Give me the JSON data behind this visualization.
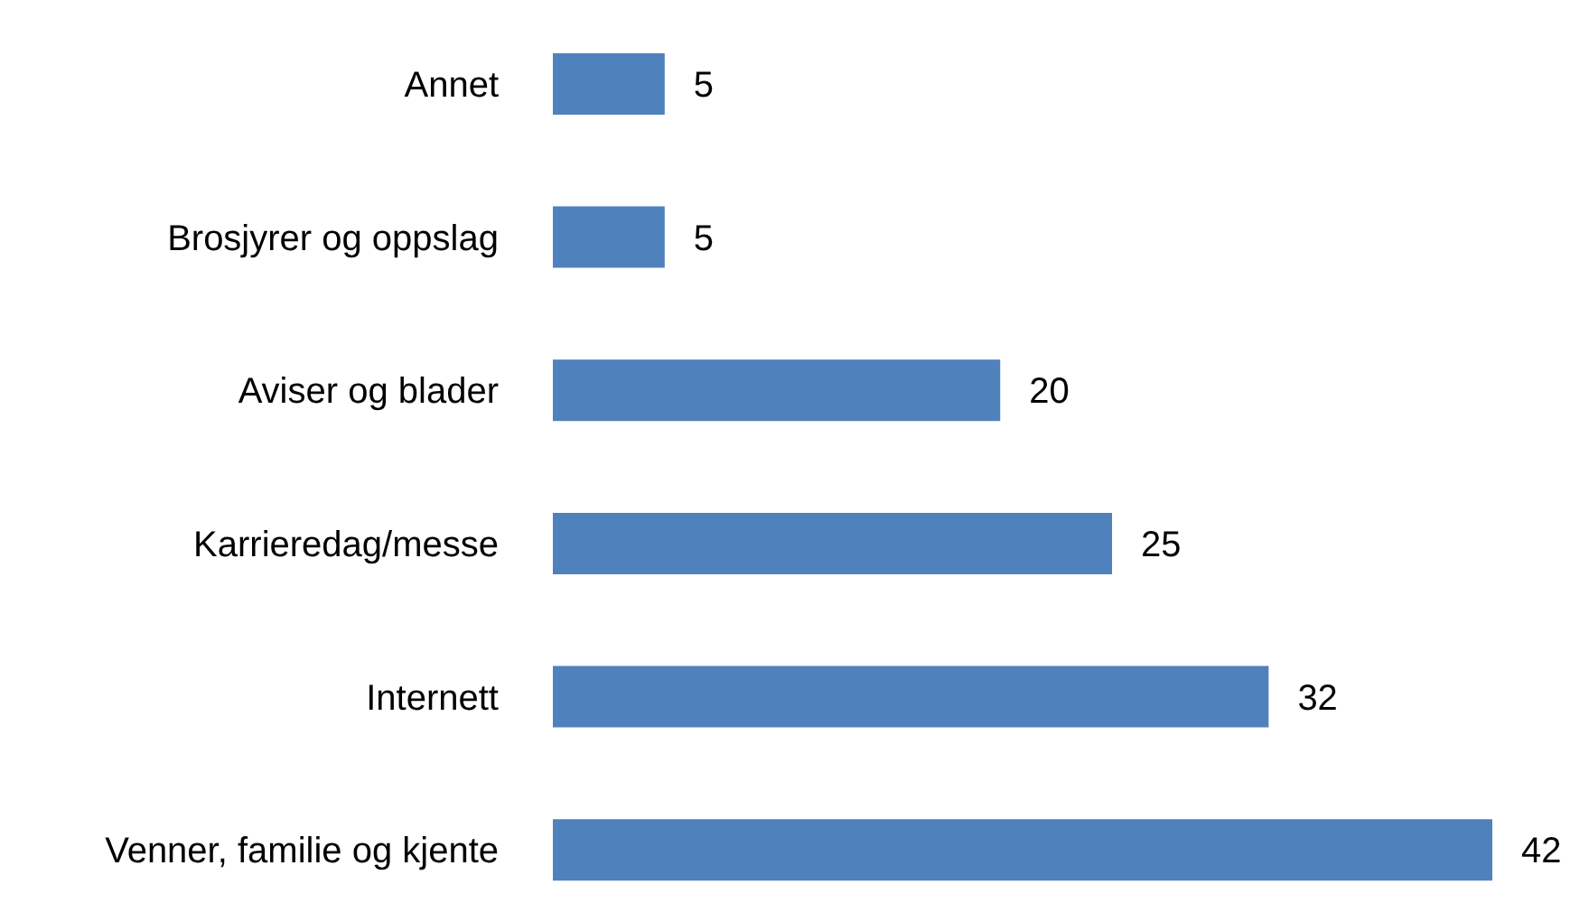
{
  "chart_data": {
    "type": "bar",
    "orientation": "horizontal",
    "categories": [
      "Annet",
      "Brosjyrer og oppslag",
      "Aviser og blader",
      "Karrieredag/messe",
      "Internett",
      "Venner, familie og kjente"
    ],
    "values": [
      5,
      5,
      20,
      25,
      32,
      42
    ],
    "color": "#4f81bd",
    "data_labels": true
  }
}
